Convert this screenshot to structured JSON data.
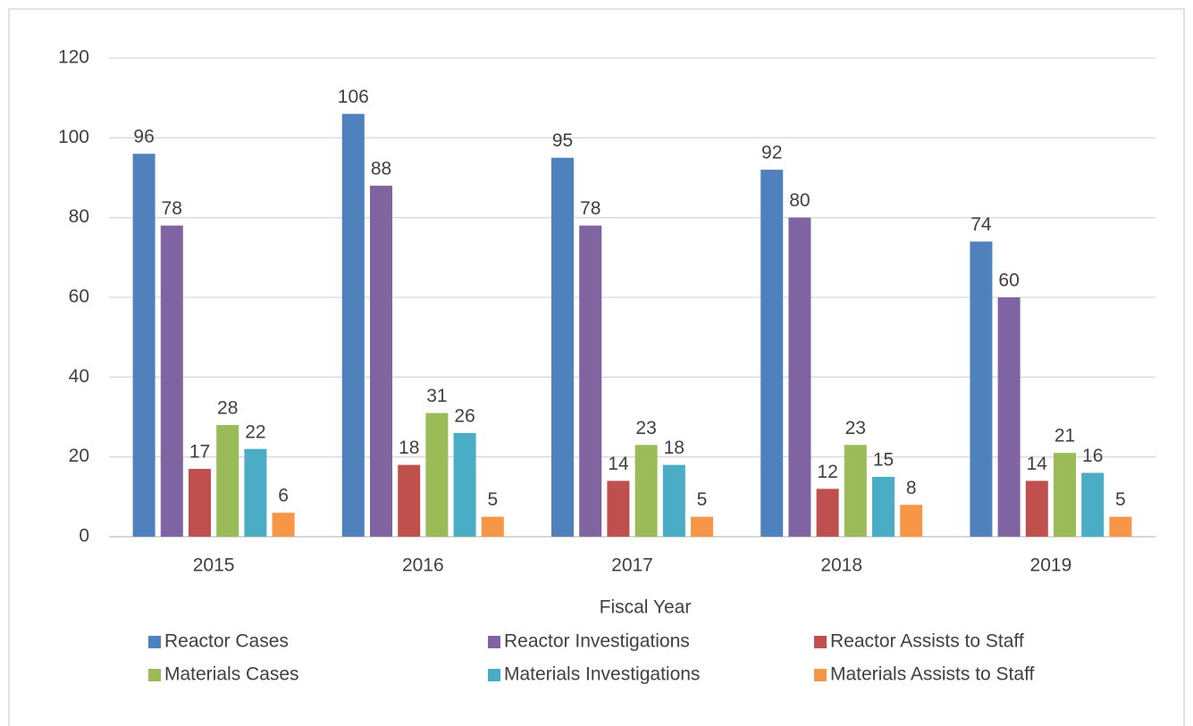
{
  "chart_data": {
    "type": "bar",
    "x_label": "Fiscal Year",
    "categories": [
      "2015",
      "2016",
      "2017",
      "2018",
      "2019"
    ],
    "series": [
      {
        "name": "Reactor Cases",
        "color": "#4f81bd",
        "values": [
          96,
          106,
          95,
          92,
          74
        ]
      },
      {
        "name": "Reactor Investigations",
        "color": "#8064a2",
        "values": [
          78,
          88,
          78,
          80,
          60
        ]
      },
      {
        "name": "Reactor Assists to Staff",
        "color": "#c0504d",
        "values": [
          17,
          18,
          14,
          12,
          14
        ]
      },
      {
        "name": "Materials Cases",
        "color": "#9bbb59",
        "values": [
          28,
          31,
          23,
          23,
          21
        ]
      },
      {
        "name": "Materials Investigations",
        "color": "#4bacc6",
        "values": [
          22,
          26,
          18,
          15,
          16
        ]
      },
      {
        "name": "Materials Assists to Staff",
        "color": "#f79646",
        "values": [
          6,
          5,
          5,
          8,
          5
        ]
      }
    ],
    "ylim": [
      0,
      120
    ],
    "yticks": [
      0,
      20,
      40,
      60,
      80,
      100,
      120
    ],
    "grid": true,
    "legend": "bottom"
  }
}
